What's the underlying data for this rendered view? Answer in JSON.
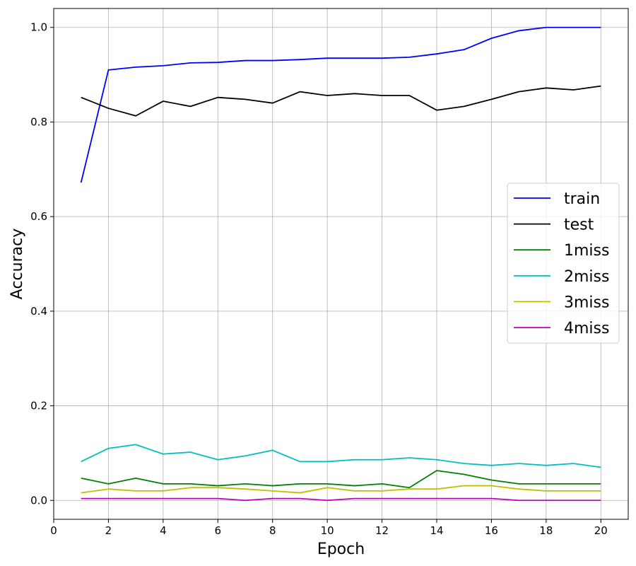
{
  "chart_data": {
    "type": "line",
    "title": "",
    "xlabel": "Epoch",
    "ylabel": "Accuracy",
    "xlim": [
      0,
      21
    ],
    "ylim": [
      -0.04,
      1.04
    ],
    "xticks": [
      0,
      2,
      4,
      6,
      8,
      10,
      12,
      14,
      16,
      18,
      20
    ],
    "yticks": [
      0.0,
      0.2,
      0.4,
      0.6,
      0.8,
      1.0
    ],
    "xtick_labels": [
      "0",
      "2",
      "4",
      "6",
      "8",
      "10",
      "12",
      "14",
      "16",
      "18",
      "20"
    ],
    "ytick_labels": [
      "0.0",
      "0.2",
      "0.4",
      "0.6",
      "0.8",
      "1.0"
    ],
    "grid": true,
    "legend_position": "center-right",
    "x": [
      1,
      2,
      3,
      4,
      5,
      6,
      7,
      8,
      9,
      10,
      11,
      12,
      13,
      14,
      15,
      16,
      17,
      18,
      19,
      20
    ],
    "series": [
      {
        "name": "train",
        "color": "#0000ff",
        "values": [
          0.672,
          0.91,
          0.916,
          0.919,
          0.925,
          0.926,
          0.93,
          0.93,
          0.932,
          0.935,
          0.935,
          0.935,
          0.937,
          0.944,
          0.953,
          0.977,
          0.993,
          1.0,
          1.0,
          1.0
        ]
      },
      {
        "name": "test",
        "color": "#000000",
        "values": [
          0.852,
          0.829,
          0.813,
          0.844,
          0.833,
          0.852,
          0.848,
          0.84,
          0.864,
          0.856,
          0.86,
          0.856,
          0.856,
          0.825,
          0.833,
          0.848,
          0.864,
          0.872,
          0.868,
          0.876
        ]
      },
      {
        "name": "1miss",
        "color": "#008000",
        "values": [
          0.047,
          0.035,
          0.047,
          0.035,
          0.035,
          0.031,
          0.035,
          0.031,
          0.035,
          0.035,
          0.031,
          0.035,
          0.027,
          0.063,
          0.055,
          0.043,
          0.035,
          0.035,
          0.035,
          0.035
        ]
      },
      {
        "name": "2miss",
        "color": "#00bfbf",
        "values": [
          0.082,
          0.11,
          0.118,
          0.098,
          0.102,
          0.086,
          0.094,
          0.106,
          0.082,
          0.082,
          0.086,
          0.086,
          0.09,
          0.086,
          0.078,
          0.074,
          0.078,
          0.074,
          0.078,
          0.07
        ]
      },
      {
        "name": "3miss",
        "color": "#bfbf00",
        "values": [
          0.016,
          0.024,
          0.02,
          0.02,
          0.027,
          0.027,
          0.024,
          0.02,
          0.016,
          0.027,
          0.02,
          0.02,
          0.024,
          0.024,
          0.031,
          0.031,
          0.024,
          0.02,
          0.02,
          0.02
        ]
      },
      {
        "name": "4miss",
        "color": "#bf00bf",
        "values": [
          0.004,
          0.004,
          0.004,
          0.004,
          0.004,
          0.004,
          0.0,
          0.004,
          0.004,
          0.0,
          0.004,
          0.004,
          0.004,
          0.004,
          0.004,
          0.004,
          0.0,
          0.0,
          0.0,
          0.0
        ]
      }
    ]
  }
}
